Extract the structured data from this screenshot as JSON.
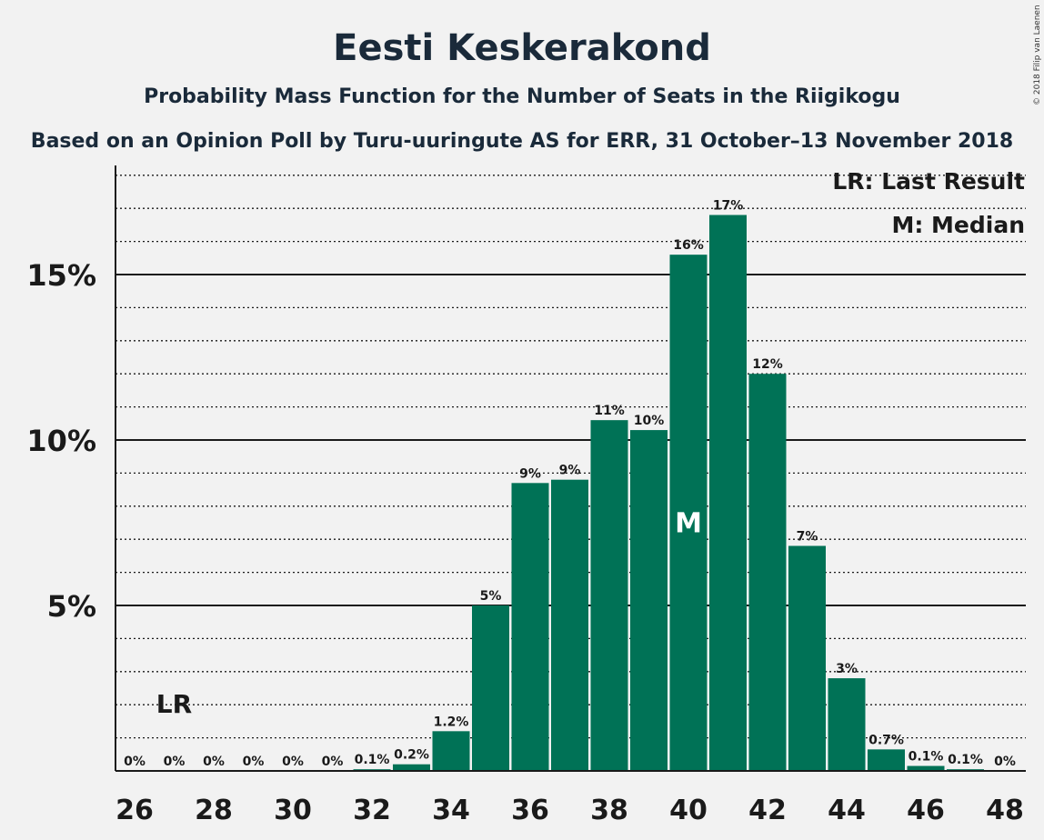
{
  "chart_data": {
    "type": "bar",
    "title": "Eesti Keskerakond",
    "subtitle": "Probability Mass Function for the Number of Seats in the Riigikogu",
    "subtitle2": "Based on an Opinion Poll by Turu-uuringute AS for ERR, 31 October–13 November 2018",
    "copyright": "© 2018 Filip van Laenen",
    "legend": [
      "LR: Last Result",
      "M: Median"
    ],
    "x": [
      26,
      27,
      28,
      29,
      30,
      31,
      32,
      33,
      34,
      35,
      36,
      37,
      38,
      39,
      40,
      41,
      42,
      43,
      44,
      45,
      46,
      47,
      48
    ],
    "values": [
      0,
      0,
      0,
      0,
      0,
      0,
      0.05,
      0.2,
      1.2,
      5.0,
      8.7,
      8.8,
      10.6,
      10.3,
      15.6,
      16.8,
      12.0,
      6.8,
      2.8,
      0.65,
      0.15,
      0.05,
      0
    ],
    "labels": [
      "0%",
      "0%",
      "0%",
      "0%",
      "0%",
      "0%",
      "0.1%",
      "0.2%",
      "1.2%",
      "5%",
      "9%",
      "9%",
      "11%",
      "10%",
      "16%",
      "17%",
      "12%",
      "7%",
      "3%",
      "0.7%",
      "0.1%",
      "0.1%",
      "0%"
    ],
    "xticks": [
      26,
      28,
      30,
      32,
      34,
      36,
      38,
      40,
      42,
      44,
      46,
      48
    ],
    "yticks": [
      5,
      10,
      15
    ],
    "ytick_labels": [
      "5%",
      "10%",
      "15%"
    ],
    "ylim": [
      0,
      18.2
    ],
    "minor_grid_step": 1,
    "last_result_seat": 27,
    "last_result_label": "LR",
    "median_seat": 40,
    "median_label": "M",
    "bar_color": "#007256",
    "grid": true
  }
}
